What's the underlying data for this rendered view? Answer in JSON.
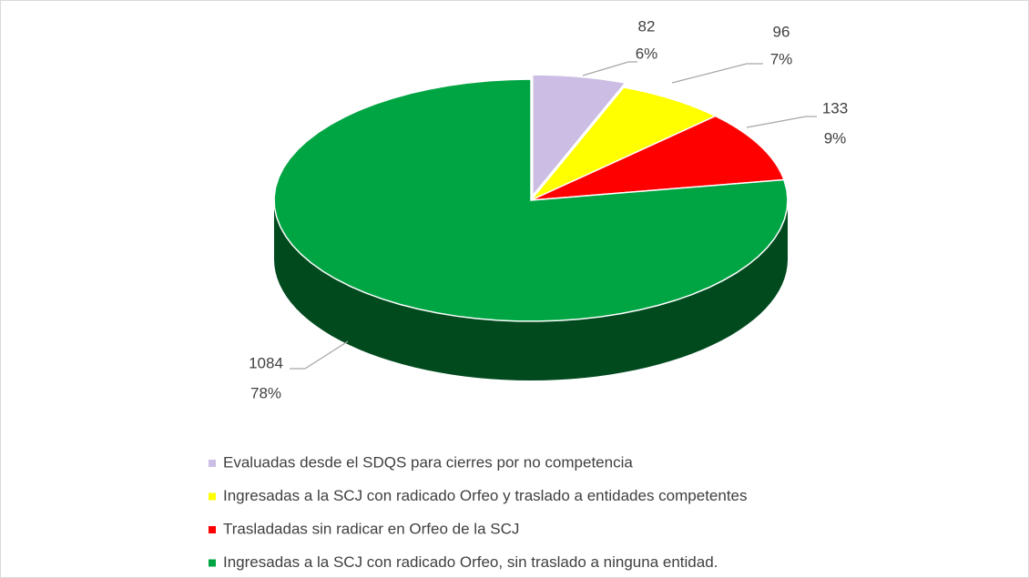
{
  "chart_data": {
    "type": "pie",
    "categories": [
      "Evaluadas desde el SDQS para cierres por no competencia",
      "Ingresadas a la SCJ con radicado Orfeo y traslado a entidades competentes",
      "Trasladadas sin radicar en Orfeo de la SCJ",
      "Ingresadas a la SCJ con radicado Orfeo, sin traslado a ninguna entidad."
    ],
    "values": [
      82,
      96,
      133,
      1084
    ],
    "percent_labels": [
      "6%",
      "7%",
      "9%",
      "78%"
    ],
    "colors": [
      "#cbbde3",
      "#ffff00",
      "#ff0000",
      "#00a543"
    ],
    "legend": "bottom"
  }
}
